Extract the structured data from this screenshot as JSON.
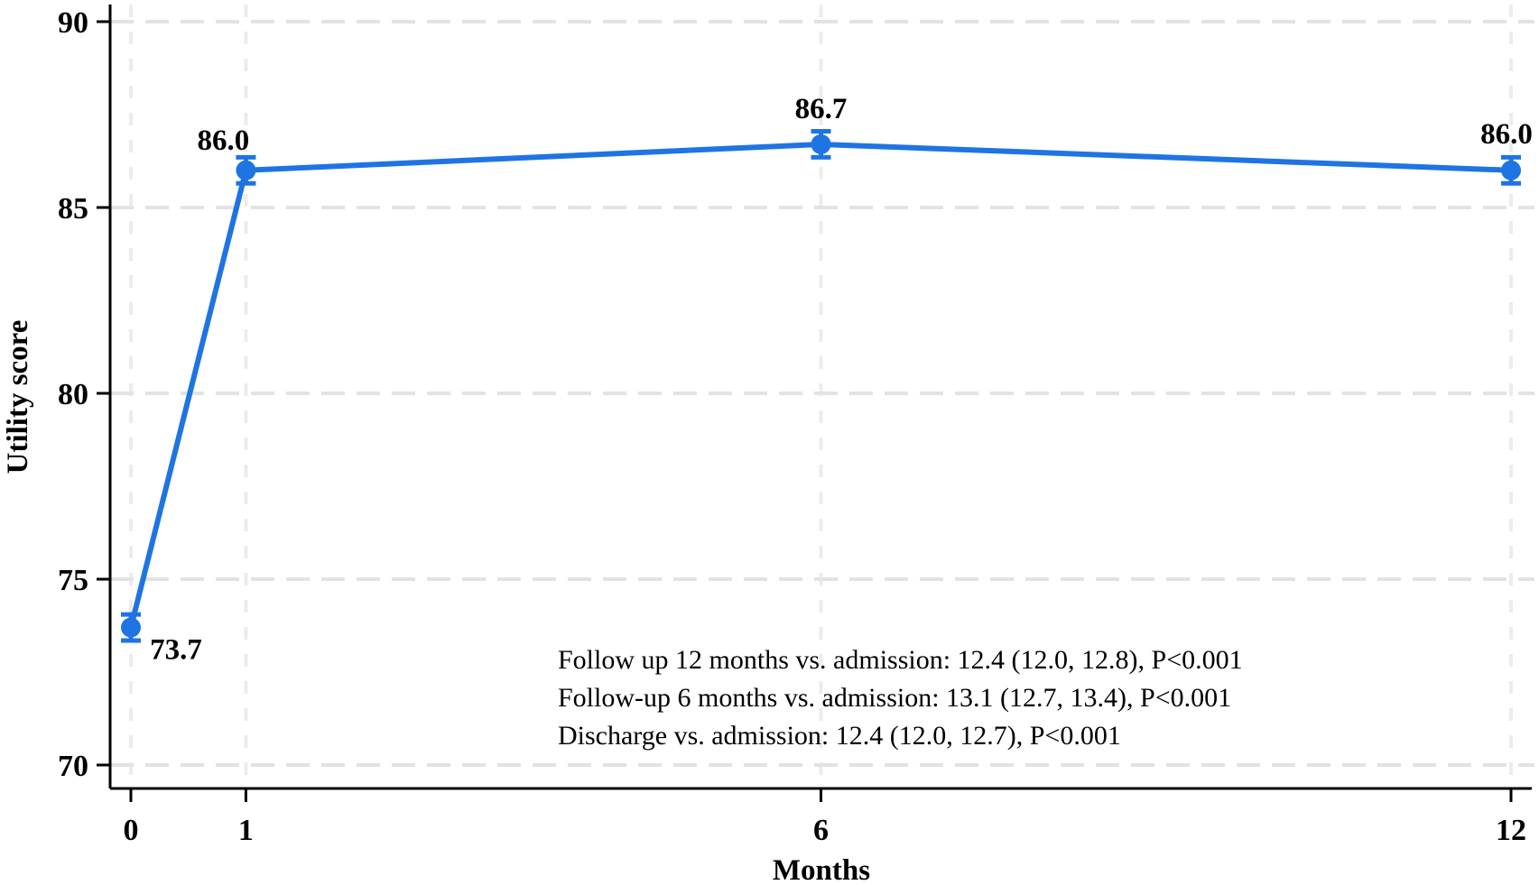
{
  "chart_data": {
    "type": "line",
    "title": "",
    "xlabel": "Months",
    "ylabel": "Utility score",
    "x": [
      0,
      1,
      6,
      12
    ],
    "x_tick_labels": [
      "0",
      "1",
      "6",
      "12"
    ],
    "y_ticks": [
      70,
      75,
      80,
      85,
      90
    ],
    "y_tick_labels": [
      "70",
      "75",
      "80",
      "85",
      "90"
    ],
    "xlim": [
      -0.18,
      12.2
    ],
    "ylim": [
      69.4,
      90.45
    ],
    "grid": true,
    "legend": "none",
    "series": [
      {
        "name": "Utility score",
        "x": [
          0,
          1,
          6,
          12
        ],
        "values": [
          73.7,
          86.0,
          86.7,
          86.0
        ],
        "errors": [
          0.35,
          0.35,
          0.35,
          0.35
        ],
        "point_labels": [
          "73.7",
          "86.0",
          "86.7",
          "86.0"
        ],
        "color": "#1f74e4",
        "marker": "circle-filled"
      }
    ],
    "annotations": [
      "Follow up 12 months vs. admission: 12.4 (12.0, 12.8), P<0.001",
      "Follow-up 6 months vs. admission: 13.1 (12.7, 13.4), P<0.001",
      "Discharge vs. admission: 12.4 (12.0, 12.7), P<0.001"
    ]
  },
  "colors": {
    "line": "#1f74e4",
    "grid_horizontal": "#e3e3e3",
    "grid_vertical": "#ececec",
    "axis": "#000000",
    "background": "#ffffff",
    "text": "#000000",
    "annotation_text": "#1a1a1a"
  }
}
